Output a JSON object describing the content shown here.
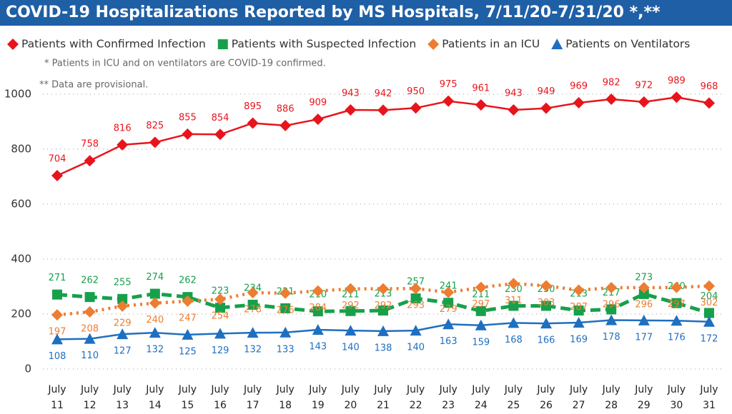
{
  "chart_data": {
    "type": "line",
    "title": "COVID-19 Hospitalizations Reported by MS Hospitals, 7/11/20-7/31/20 *,**",
    "notes": [
      "* Patients in ICU and on ventilators are COVID-19 confirmed.",
      "** Data are provisional."
    ],
    "categories": [
      "July 11",
      "July 12",
      "July 13",
      "July 14",
      "July 15",
      "July 16",
      "July 17",
      "July 18",
      "July 19",
      "July 20",
      "July 21",
      "July 22",
      "July 23",
      "July 24",
      "July 25",
      "July 26",
      "July 27",
      "July 28",
      "July 29",
      "July 30",
      "July 31"
    ],
    "series": [
      {
        "name": "Patients with Confirmed Infection",
        "color": "#e8141b",
        "marker": "diamond",
        "dash": "solid",
        "label_position": "above",
        "values": [
          704,
          758,
          816,
          825,
          855,
          854,
          895,
          886,
          909,
          943,
          942,
          950,
          975,
          961,
          943,
          949,
          969,
          982,
          972,
          989,
          968
        ]
      },
      {
        "name": "Patients with Suspected Infection",
        "color": "#17a04b",
        "marker": "square",
        "dash": "dashed",
        "label_position": "above",
        "values": [
          271,
          262,
          255,
          274,
          262,
          223,
          234,
          221,
          210,
          211,
          213,
          257,
          241,
          211,
          230,
          230,
          213,
          217,
          273,
          240,
          204
        ]
      },
      {
        "name": "Patients in an ICU",
        "color": "#ed7d31",
        "marker": "diamond",
        "dash": "dotted",
        "label_position": "below",
        "values": [
          197,
          208,
          229,
          240,
          247,
          254,
          278,
          276,
          284,
          292,
          292,
          293,
          279,
          297,
          311,
          303,
          287,
          296,
          296,
          297,
          302
        ]
      },
      {
        "name": "Patients on Ventilators",
        "color": "#1f6fc1",
        "marker": "triangle",
        "dash": "solid",
        "label_position": "below",
        "values": [
          108,
          110,
          127,
          132,
          125,
          129,
          132,
          133,
          143,
          140,
          138,
          140,
          163,
          159,
          168,
          166,
          169,
          178,
          177,
          176,
          172
        ]
      }
    ],
    "ylim": [
      0,
      1050
    ],
    "yticks": [
      0,
      200,
      400,
      600,
      800,
      1000
    ],
    "grid": true,
    "legend": "top"
  }
}
